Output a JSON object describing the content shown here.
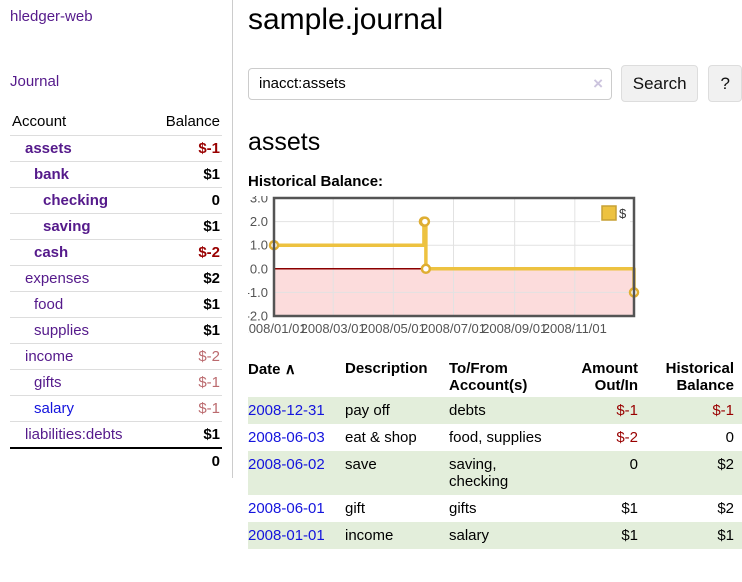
{
  "app": {
    "title": "hledger-web"
  },
  "colors": {
    "purple": "#551a8b",
    "link_blue": "#1414dd",
    "negative_strong": "#990000",
    "negative_soft": "#bb6a6e",
    "row_green": "#e3eedb",
    "series_gold": "#edc240"
  },
  "sidebar": {
    "journal_label": "Journal",
    "accounts_table": {
      "account_header": "Account",
      "balance_header": "Balance",
      "rows": [
        {
          "name": "assets",
          "balance": "$-1",
          "depth": 1,
          "bold": true,
          "negative": true,
          "link_color": "purple"
        },
        {
          "name": "bank",
          "balance": "$1",
          "depth": 2,
          "bold": true,
          "negative": false,
          "link_color": "purple"
        },
        {
          "name": "checking",
          "balance": "0",
          "depth": 3,
          "bold": true,
          "negative": false,
          "link_color": "purple"
        },
        {
          "name": "saving",
          "balance": "$1",
          "depth": 3,
          "bold": true,
          "negative": false,
          "link_color": "purple"
        },
        {
          "name": "cash",
          "balance": "$-2",
          "depth": 2,
          "bold": true,
          "negative": true,
          "link_color": "purple"
        },
        {
          "name": "expenses",
          "balance": "$2",
          "depth": 1,
          "bold": false,
          "negative": false,
          "link_color": "purple"
        },
        {
          "name": "food",
          "balance": "$1",
          "depth": 2,
          "bold": false,
          "negative": false,
          "link_color": "purple"
        },
        {
          "name": "supplies",
          "balance": "$1",
          "depth": 2,
          "bold": false,
          "negative": false,
          "link_color": "purple"
        },
        {
          "name": "income",
          "balance": "$-2",
          "depth": 1,
          "bold": false,
          "negative": true,
          "link_color": "purple"
        },
        {
          "name": "gifts",
          "balance": "$-1",
          "depth": 2,
          "bold": false,
          "negative": true,
          "link_color": "purple"
        },
        {
          "name": "salary",
          "balance": "$-1",
          "depth": 2,
          "bold": false,
          "negative": true,
          "link_color": "blue"
        },
        {
          "name": "liabilities:debts",
          "balance": "$1",
          "depth": 1,
          "bold": false,
          "negative": false,
          "link_color": "purple"
        }
      ],
      "total": "0"
    }
  },
  "main": {
    "title": "sample.journal",
    "search": {
      "value": "inacct:assets",
      "clear_icon": "×",
      "button_label": "Search",
      "help_label": "?"
    },
    "account_heading": "assets",
    "chart_label": "Historical Balance:"
  },
  "chart_data": {
    "type": "line",
    "style": "steps",
    "title": "Historical Balance",
    "legend": "$",
    "legend_position": "top-right",
    "x_start": "2008-01-01",
    "x_end": "2008-12-31",
    "ylim": [
      -2,
      3
    ],
    "y_ticks": [
      "3.0",
      "2.0",
      "1.0",
      "0.0",
      "-1.0",
      "-2.0"
    ],
    "x_ticks": [
      "2008/01/01",
      "2008/03/01",
      "2008/05/01",
      "2008/07/01",
      "2008/09/01",
      "2008/11/01"
    ],
    "grid": true,
    "series": [
      {
        "name": "$",
        "color": "#edc240",
        "points": [
          [
            "2008-01-01",
            1
          ],
          [
            "2008-06-01",
            2
          ],
          [
            "2008-06-02",
            2
          ],
          [
            "2008-06-03",
            0
          ],
          [
            "2008-12-31",
            -1
          ]
        ]
      }
    ],
    "zero_line_color": "#8b0000",
    "negative_region_fill": "#fcdcdc",
    "border_color": "#545454",
    "gridline_color": "#e2e2e2",
    "tick_label_color": "#545454"
  },
  "register_table": {
    "headers": {
      "date": "Date",
      "sort_icon": "∧",
      "description": "Description",
      "tofrom": "To/From\nAccount(s)",
      "amount": "Amount\nOut/In",
      "balance": "Historical\nBalance"
    },
    "rows": [
      {
        "date": "2008-12-31",
        "description": "pay off",
        "tofrom": "debts",
        "amount": "$-1",
        "amount_negative": true,
        "balance": "$-1",
        "balance_negative": true
      },
      {
        "date": "2008-06-03",
        "description": "eat & shop",
        "tofrom": "food, supplies",
        "amount": "$-2",
        "amount_negative": true,
        "balance": "0",
        "balance_negative": false
      },
      {
        "date": "2008-06-02",
        "description": "save",
        "tofrom": "saving, checking",
        "amount": "0",
        "amount_negative": false,
        "balance": "$2",
        "balance_negative": false
      },
      {
        "date": "2008-06-01",
        "description": "gift",
        "tofrom": "gifts",
        "amount": "$1",
        "amount_negative": false,
        "balance": "$2",
        "balance_negative": false
      },
      {
        "date": "2008-01-01",
        "description": "income",
        "tofrom": "salary",
        "amount": "$1",
        "amount_negative": false,
        "balance": "$1",
        "balance_negative": false
      }
    ]
  }
}
